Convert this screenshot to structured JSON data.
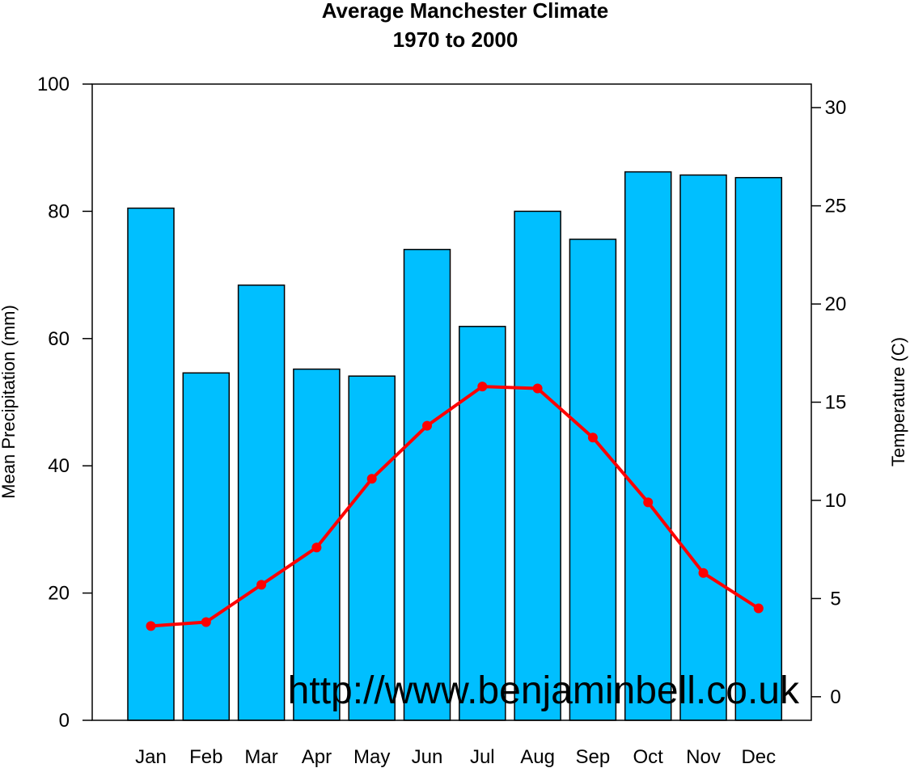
{
  "chart_data": {
    "type": "bar",
    "title": "Average Manchester Climate",
    "subtitle": "1970 to 2000",
    "categories": [
      "Jan",
      "Feb",
      "Mar",
      "Apr",
      "May",
      "Jun",
      "Jul",
      "Aug",
      "Sep",
      "Oct",
      "Nov",
      "Dec"
    ],
    "series": [
      {
        "type": "bar",
        "axis": "left",
        "values": [
          80.5,
          54.6,
          68.4,
          55.2,
          54.1,
          74.0,
          61.9,
          80.0,
          75.6,
          86.2,
          85.7,
          85.3
        ]
      },
      {
        "type": "line",
        "axis": "right",
        "values": [
          3.6,
          3.8,
          5.7,
          7.6,
          11.1,
          13.8,
          15.8,
          15.7,
          13.2,
          9.9,
          6.3,
          4.5
        ]
      }
    ],
    "ylabel": "Mean Precipitation (mm)",
    "ylim": [
      0,
      100
    ],
    "yticks": [
      "0",
      "20",
      "40",
      "60",
      "80",
      "100"
    ],
    "y2label": "Temperature (C)",
    "y2lim": [
      -1.2,
      31.2
    ],
    "y2ticks": [
      "0",
      "5",
      "10",
      "15",
      "20",
      "25",
      "30"
    ],
    "grid": false,
    "bar_color": "#00BFFF",
    "bar_edge_color": "#000000",
    "line_color": "#FF0000",
    "watermark": "http://www.benjaminbell.co.uk"
  }
}
